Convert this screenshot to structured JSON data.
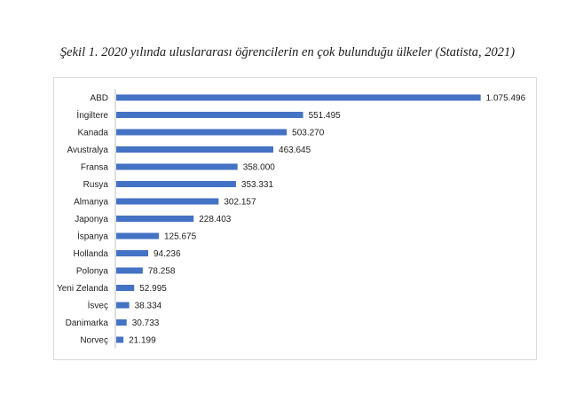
{
  "caption": "Şekil 1. 2020 yılında uluslararası öğrencilerin en çok bulunduğu ülkeler (Statista, 2021)",
  "colors": {
    "bar": "#4472c4",
    "frame": "#d9d9d9",
    "axis": "#bfbfbf"
  },
  "chart_data": {
    "type": "bar",
    "orientation": "horizontal",
    "title": "",
    "xlabel": "",
    "ylabel": "",
    "xlim": [
      0,
      1100000
    ],
    "grid": false,
    "legend": "none",
    "categories": [
      "ABD",
      "İngiltere",
      "Kanada",
      "Avustralya",
      "Fransa",
      "Rusya",
      "Almanya",
      "Japonya",
      "İspanya",
      "Hollanda",
      "Polonya",
      "Yeni Zelanda",
      "İsveç",
      "Danimarka",
      "Norveç"
    ],
    "values": [
      1075496,
      551495,
      503270,
      463645,
      358000,
      353331,
      302157,
      228403,
      125675,
      94236,
      78258,
      52995,
      38334,
      30733,
      21199
    ],
    "value_labels": [
      "1.075.496",
      "551.495",
      "503.270",
      "463.645",
      "358.000",
      "353.331",
      "302.157",
      "228.403",
      "125.675",
      "94.236",
      "78.258",
      "52.995",
      "38.334",
      "30.733",
      "21.199"
    ]
  }
}
